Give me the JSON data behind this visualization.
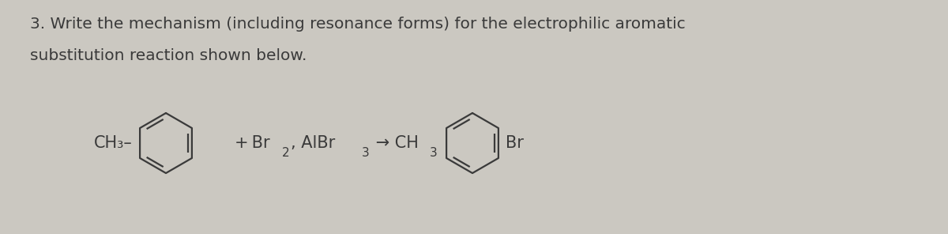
{
  "background_color": "#cbc8c1",
  "text_color": "#3a3a3a",
  "title_line1": "3. Write the mechanism (including resonance forms) for the electrophilic aromatic",
  "title_line2": "substitution reaction shown below.",
  "title_fontsize": 14.5,
  "ch3_left": "CH₃–",
  "ch3_right": "CH₃–",
  "br_label": "Br",
  "ring_color": "#3a3a3a",
  "ring_linewidth": 1.6,
  "fig_width": 12.0,
  "fig_height": 2.96,
  "dpi": 100
}
